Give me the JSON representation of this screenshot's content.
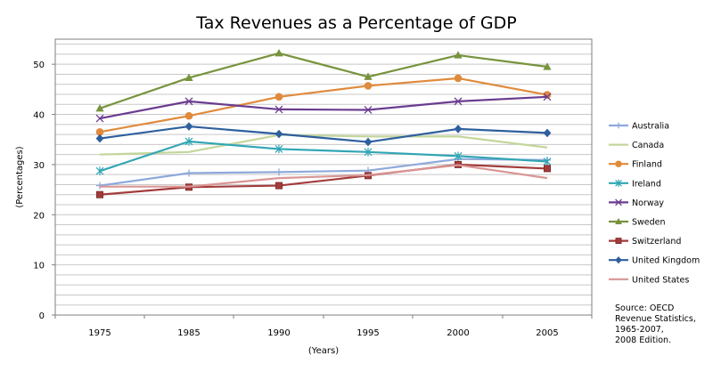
{
  "chart_data": {
    "type": "line",
    "title": "Tax Revenues as a Percentage of GDP",
    "xlabel": "(Years)",
    "ylabel": "(Percentages)",
    "categories": [
      "1975",
      "1985",
      "1990",
      "1995",
      "2000",
      "2005"
    ],
    "ylim": [
      0,
      55
    ],
    "yticks": [
      0,
      10,
      20,
      30,
      40,
      50
    ],
    "grid": true,
    "legend_position": "right",
    "series": [
      {
        "name": "Australia",
        "color": "#8EA9DB",
        "marker": "plus",
        "values": [
          25.8,
          28.3,
          28.5,
          28.8,
          31.1,
          30.9
        ]
      },
      {
        "name": "Canada",
        "color": "#C3D69B",
        "marker": "none",
        "values": [
          32.0,
          32.5,
          35.9,
          35.6,
          35.6,
          33.4
        ]
      },
      {
        "name": "Finland",
        "color": "#E08A3C",
        "marker": "circle",
        "values": [
          36.5,
          39.7,
          43.5,
          45.7,
          47.2,
          43.9
        ]
      },
      {
        "name": "Ireland",
        "color": "#31A6B4",
        "marker": "star",
        "values": [
          28.7,
          34.6,
          33.1,
          32.5,
          31.7,
          30.6
        ]
      },
      {
        "name": "Norway",
        "color": "#6B3C8F",
        "marker": "x",
        "values": [
          39.2,
          42.6,
          41.0,
          40.9,
          42.6,
          43.5
        ]
      },
      {
        "name": "Sweden",
        "color": "#77933C",
        "marker": "triangle",
        "values": [
          41.2,
          47.3,
          52.2,
          47.5,
          51.8,
          49.5
        ]
      },
      {
        "name": "Switzerland",
        "color": "#A33B3B",
        "marker": "square",
        "values": [
          24.0,
          25.5,
          25.8,
          27.8,
          30.0,
          29.2
        ]
      },
      {
        "name": "United Kingdom",
        "color": "#2E5F9E",
        "marker": "diamond",
        "values": [
          35.2,
          37.6,
          36.1,
          34.5,
          37.1,
          36.3
        ]
      },
      {
        "name": "United States",
        "color": "#D99694",
        "marker": "none",
        "values": [
          25.6,
          25.6,
          27.3,
          27.9,
          29.9,
          27.3
        ]
      }
    ],
    "annotation": [
      "Source: OECD",
      "Revenue Statistics,",
      "1965-2007,",
      "2008 Edition."
    ]
  }
}
